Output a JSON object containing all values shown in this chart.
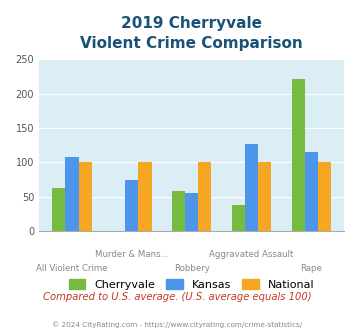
{
  "title_line1": "2019 Cherryvale",
  "title_line2": "Violent Crime Comparison",
  "categories": [
    "All Violent Crime",
    "Murder & Mans...",
    "Robbery",
    "Aggravated Assault",
    "Rape"
  ],
  "cherryvale": [
    63,
    0,
    58,
    38,
    221
  ],
  "kansas": [
    108,
    74,
    56,
    127,
    115
  ],
  "national": [
    100,
    100,
    100,
    100,
    100
  ],
  "cherryvale_color": "#76bb40",
  "kansas_color": "#4d94eb",
  "national_color": "#f5a623",
  "ylim": [
    0,
    250
  ],
  "yticks": [
    0,
    50,
    100,
    150,
    200,
    250
  ],
  "bg_color": "#dceef5",
  "title_color": "#1a5276",
  "subtitle_note": "Compared to U.S. average. (U.S. average equals 100)",
  "subtitle_note_color": "#c0392b",
  "footer": "© 2024 CityRating.com - https://www.cityrating.com/crime-statistics/",
  "footer_color": "#7f8c8d",
  "legend_labels": [
    "Cherryvale",
    "Kansas",
    "National"
  ],
  "top_labels": [
    "",
    "Murder & Mans...",
    "",
    "Aggravated Assault",
    ""
  ],
  "bottom_labels": [
    "All Violent Crime",
    "",
    "Robbery",
    "",
    "Rape"
  ]
}
